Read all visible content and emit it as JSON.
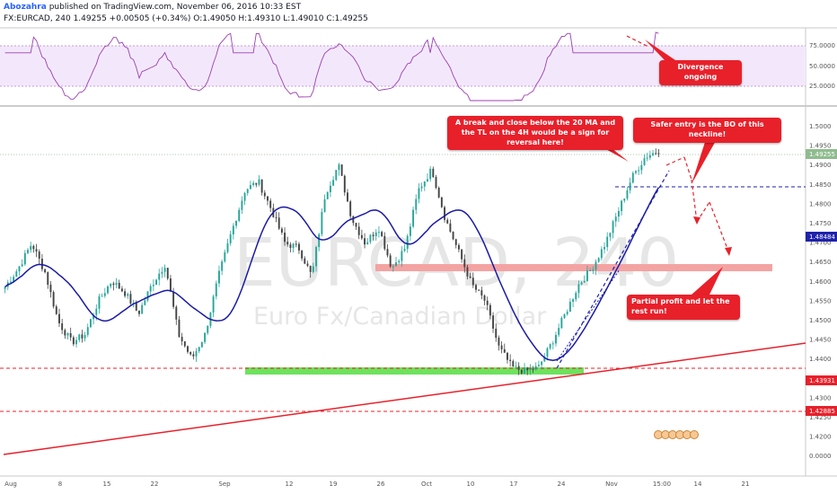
{
  "header": {
    "author": "Abozahra",
    "published": "published on TradingView.com, November 06, 2016 10:33 EST",
    "symbol_line": "FX:EURCAD, 240  1.49255  +0.00505 (+0.34%)  O:1.49050  H:1.49310  L:1.49010  C:1.49255"
  },
  "watermark": {
    "symbol": "EURCAD, 240",
    "name": "Euro Fx/Canadian Dollar"
  },
  "rsi_axis": {
    "ticks": [
      "75.0000",
      "50.0000",
      "25.0000"
    ]
  },
  "price_axis": {
    "ticks": [
      "1.5000",
      "1.4950",
      "1.4900",
      "1.4850",
      "1.4800",
      "1.4750",
      "1.4700",
      "1.4650",
      "1.4600",
      "1.4550",
      "1.4500",
      "1.4450",
      "1.4400",
      "1.4350",
      "1.4300",
      "1.4250",
      "1.4200",
      "0.0000"
    ],
    "badges": [
      {
        "label": "1.49255",
        "color": "#8fbc8f"
      },
      {
        "label": "1.48484",
        "color": "#1e22aa"
      },
      {
        "label": "1.43931",
        "color": "#e8202a"
      },
      {
        "label": "1.42885",
        "color": "#e8202a"
      }
    ]
  },
  "time_axis": {
    "labels": [
      "Aug",
      "8",
      "15",
      "22",
      "Sep",
      "12",
      "19",
      "26",
      "Oct",
      "10",
      "17",
      "24",
      "Nov",
      "15:00",
      "14",
      "21"
    ]
  },
  "annotations": {
    "divergence": "Divergence ongoing",
    "break": "A break and close below the 20 MA and the TL on the 4H would be a sign for reversal here!",
    "safer": "Safer entry is the BO of this neckline!",
    "partial": "Partial profit and let the rest run!"
  },
  "colors": {
    "up": "#26a69a",
    "down": "#444444",
    "ma": "#1a1aa8",
    "rsi": "#9c3fb5",
    "support_zone": "#6ee25e",
    "resistance_zone": "#f4a3a3",
    "trendline": "#e8202a",
    "neckline": "#1e22aa"
  },
  "chart_data": {
    "type": "candlestick",
    "series": [
      {
        "name": "EURCAD, 240",
        "values": [
          1.4595,
          1.464,
          1.47,
          1.463,
          1.451,
          1.446,
          1.448,
          1.456,
          1.461,
          1.458,
          1.453,
          1.46,
          1.465,
          1.448,
          1.442,
          1.448,
          1.462,
          1.473,
          1.483,
          1.485,
          1.478,
          1.47,
          1.469,
          1.462,
          1.482,
          1.489,
          1.476,
          1.47,
          1.474,
          1.464,
          1.469,
          1.483,
          1.488,
          1.476,
          1.468,
          1.46,
          1.456,
          1.445,
          1.44,
          1.439,
          1.44,
          1.446,
          1.453,
          1.46,
          1.464,
          1.47,
          1.478,
          1.486,
          1.491,
          1.4925
        ]
      }
    ],
    "ylim": [
      1.418,
      1.502
    ],
    "levels": [
      1.49255,
      1.48484,
      1.43931,
      1.42885
    ]
  }
}
